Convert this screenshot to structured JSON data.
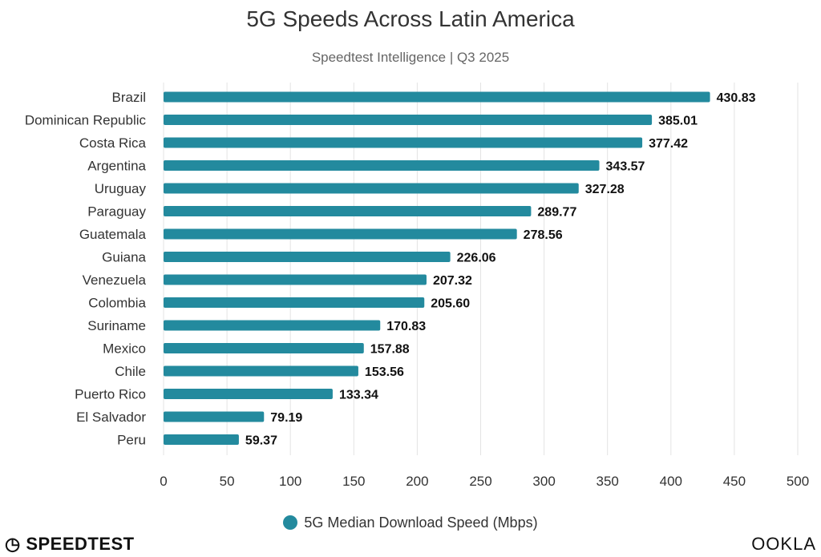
{
  "chart_data": {
    "type": "bar",
    "orientation": "horizontal",
    "title": "5G Speeds Across Latin America",
    "subtitle": "Speedtest Intelligence | Q3 2025",
    "categories": [
      "Brazil",
      "Dominican Republic",
      "Costa Rica",
      "Argentina",
      "Uruguay",
      "Paraguay",
      "Guatemala",
      "Guiana",
      "Venezuela",
      "Colombia",
      "Suriname",
      "Mexico",
      "Chile",
      "Puerto Rico",
      "El Salvador",
      "Peru"
    ],
    "series": [
      {
        "name": "5G Median Download Speed (Mbps)",
        "values": [
          430.83,
          385.01,
          377.42,
          343.57,
          327.28,
          289.77,
          278.56,
          226.06,
          207.32,
          205.6,
          170.83,
          157.88,
          153.56,
          133.34,
          79.19,
          59.37
        ]
      }
    ],
    "value_labels": [
      "430.83",
      "385.01",
      "377.42",
      "343.57",
      "327.28",
      "289.77",
      "278.56",
      "226.06",
      "207.32",
      "205.60",
      "170.83",
      "157.88",
      "153.56",
      "133.34",
      "79.19",
      "59.37"
    ],
    "xticks": [
      0,
      50,
      100,
      150,
      200,
      250,
      300,
      350,
      400,
      450,
      500
    ],
    "xlim": [
      0,
      500
    ],
    "grid": true,
    "legend": "bottom",
    "color": "#238a9e"
  },
  "logos": {
    "left": "SPEEDTEST",
    "right": "OOKLA"
  }
}
